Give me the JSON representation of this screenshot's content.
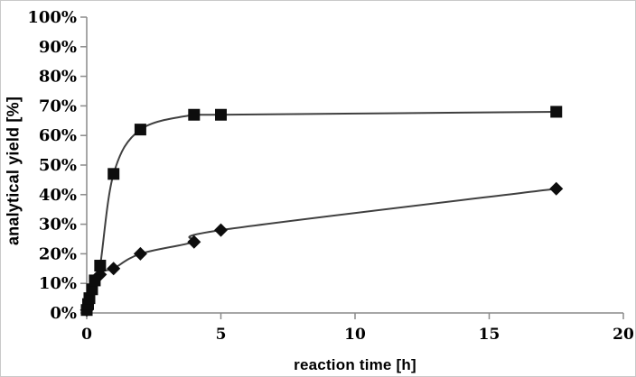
{
  "figure": {
    "background": "#ffffff",
    "border_color": "#c9c9c9",
    "axis_color": "#8a8a8a",
    "line_color": "#404040",
    "marker_color": "#0d0d0d",
    "text_color": "#000000"
  },
  "chart_data": {
    "type": "line",
    "title": "",
    "xlabel": "reaction time [h]",
    "ylabel": "analytical yield [%]",
    "xlim": [
      0,
      20
    ],
    "ylim": [
      0,
      100
    ],
    "grid": false,
    "legend": "none",
    "x_tick_values": [
      0,
      5,
      10,
      15,
      20
    ],
    "x_tick_labels": [
      "0",
      "5",
      "10",
      "15",
      "20"
    ],
    "y_tick_values": [
      0,
      10,
      20,
      30,
      40,
      50,
      60,
      70,
      80,
      90,
      100
    ],
    "y_tick_labels": [
      "0%",
      "10%",
      "20%",
      "30%",
      "40%",
      "50%",
      "60%",
      "70%",
      "80%",
      "90%",
      "100%"
    ],
    "series": [
      {
        "name": "squares",
        "marker": "square",
        "smooth": true,
        "points": [
          [
            0,
            1
          ],
          [
            0.05,
            3
          ],
          [
            0.1,
            5
          ],
          [
            0.2,
            8
          ],
          [
            0.3,
            11
          ],
          [
            0.5,
            16
          ],
          [
            1,
            47
          ],
          [
            2,
            62
          ],
          [
            4,
            67
          ],
          [
            5,
            67
          ],
          [
            17.5,
            68
          ]
        ]
      },
      {
        "name": "diamonds",
        "marker": "diamond",
        "smooth": true,
        "points": [
          [
            0,
            1
          ],
          [
            0.5,
            13
          ],
          [
            1,
            15
          ],
          [
            2,
            20
          ],
          [
            4,
            24
          ],
          [
            5,
            28
          ],
          [
            17.5,
            42
          ]
        ]
      }
    ]
  }
}
